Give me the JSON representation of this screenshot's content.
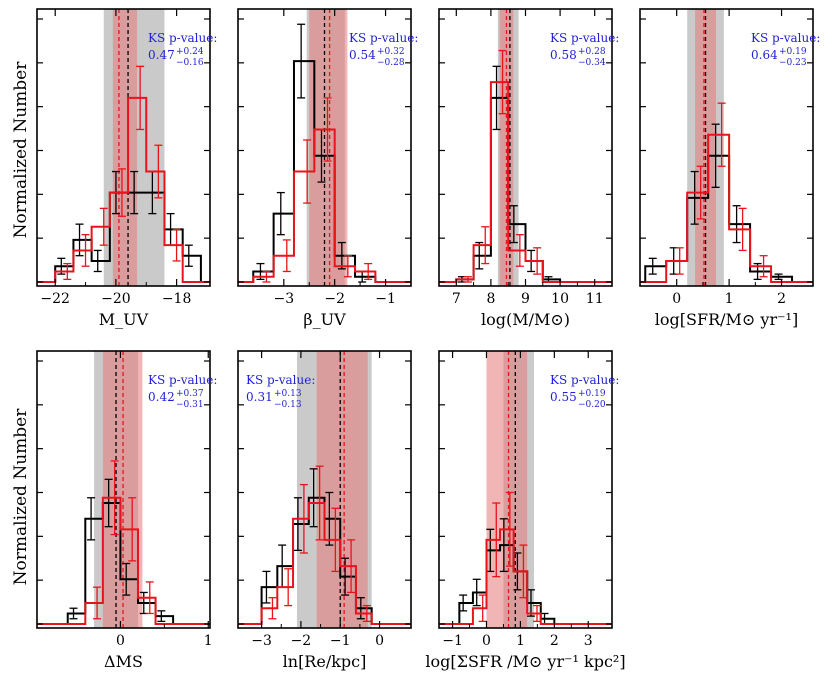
{
  "figure": {
    "ylabel": "Normalized Number",
    "ks_prefix": "KS p-value:"
  },
  "colors": {
    "sample_a": "#000000",
    "sample_b": "#e8141b",
    "band_a": "#bdbdbd",
    "band_b": "#e87979",
    "ks_text": "#1f1fd6"
  },
  "chart_data": [
    {
      "id": "muv",
      "type": "histogram",
      "xlabel": "M_UV",
      "xlim": [
        -22.6,
        -16.9
      ],
      "ylim": [
        0,
        1.0
      ],
      "xticks": [
        -22,
        -20,
        -18
      ],
      "xtick_labels": [
        "−22",
        "−20",
        "−18"
      ],
      "bin_edges": [
        -22,
        -21.4,
        -20.8,
        -20.2,
        -19.6,
        -19.0,
        -18.4,
        -17.8,
        -17.2
      ],
      "series": [
        {
          "name": "black",
          "values": [
            0.06,
            0.16,
            0.08,
            0.34,
            0.34,
            0.34,
            0.2,
            0.1
          ],
          "errors": [
            0.03,
            0.06,
            0.04,
            0.08,
            0.08,
            0.08,
            0.06,
            0.04
          ]
        },
        {
          "name": "red",
          "values": [
            0.04,
            0.12,
            0.21,
            0.34,
            0.7,
            0.42,
            0.14,
            0.0
          ],
          "errors": [
            0.03,
            0.06,
            0.07,
            0.09,
            0.12,
            0.1,
            0.06,
            0.0
          ]
        }
      ],
      "median_black": -19.6,
      "median_red": -19.9,
      "band_black": [
        -20.4,
        -18.4
      ],
      "band_red": [
        -20.1,
        -19.3
      ],
      "ks": {
        "value": "0.47",
        "plus": "+0.24",
        "minus": "−0.16",
        "pos": "right"
      }
    },
    {
      "id": "beta",
      "type": "histogram",
      "xlabel": "β_UV",
      "xlim": [
        -3.9,
        -0.5
      ],
      "ylim": [
        0,
        1.0
      ],
      "xticks": [
        -3,
        -2,
        -1
      ],
      "xtick_labels": [
        "−3",
        "−2",
        "−1"
      ],
      "bin_edges": [
        -3.6,
        -3.2,
        -2.8,
        -2.4,
        -2.0,
        -1.6,
        -1.2,
        -0.8
      ],
      "series": [
        {
          "name": "black",
          "values": [
            0.04,
            0.26,
            0.84,
            0.48,
            0.1,
            0.02,
            0.0
          ],
          "errors": [
            0.03,
            0.08,
            0.14,
            0.1,
            0.05,
            0.02,
            0.0
          ]
        },
        {
          "name": "red",
          "values": [
            0.02,
            0.1,
            0.42,
            0.58,
            0.06,
            0.04,
            0.0
          ],
          "errors": [
            0.02,
            0.06,
            0.12,
            0.12,
            0.04,
            0.03,
            0.0
          ]
        }
      ],
      "median_black": -2.2,
      "median_red": -2.1,
      "band_black": [
        -2.55,
        -1.8
      ],
      "band_red": [
        -2.5,
        -1.75
      ],
      "ks": {
        "value": "0.54",
        "plus": "+0.32",
        "minus": "−0.28",
        "pos": "right"
      }
    },
    {
      "id": "mass",
      "type": "histogram",
      "xlabel": "log(M/M⊙)",
      "xlim": [
        6.5,
        11.5
      ],
      "ylim": [
        0,
        1.0
      ],
      "xticks": [
        7,
        8,
        9,
        10,
        11
      ],
      "xtick_labels": [
        "7",
        "8",
        "9",
        "10",
        "11"
      ],
      "bin_edges": [
        7.0,
        7.5,
        8.0,
        8.5,
        9.0,
        9.5,
        10.0,
        10.5
      ],
      "series": [
        {
          "name": "black",
          "values": [
            0.01,
            0.1,
            0.7,
            0.22,
            0.08,
            0.01,
            0.0
          ],
          "errors": [
            0.01,
            0.05,
            0.12,
            0.07,
            0.04,
            0.01,
            0.0
          ]
        },
        {
          "name": "red",
          "values": [
            0.01,
            0.14,
            0.76,
            0.12,
            0.08,
            0.0,
            0.0
          ],
          "errors": [
            0.01,
            0.07,
            0.12,
            0.06,
            0.05,
            0.0,
            0.0
          ]
        }
      ],
      "median_black": 8.55,
      "median_red": 8.45,
      "band_black": [
        8.2,
        8.8
      ],
      "band_red": [
        8.25,
        8.65
      ],
      "ks": {
        "value": "0.58",
        "plus": "+0.28",
        "minus": "−0.34",
        "pos": "right"
      }
    },
    {
      "id": "sfr",
      "type": "histogram",
      "xlabel": "log[SFR/M⊙ yr⁻¹]",
      "xlim": [
        -0.7,
        2.6
      ],
      "ylim": [
        0,
        1.0
      ],
      "xticks": [
        0,
        1,
        2
      ],
      "xtick_labels": [
        "0",
        "1",
        "2"
      ],
      "bin_edges": [
        -0.6,
        -0.2,
        0.2,
        0.6,
        1.0,
        1.4,
        1.8,
        2.2
      ],
      "series": [
        {
          "name": "black",
          "values": [
            0.06,
            0.08,
            0.32,
            0.48,
            0.22,
            0.04,
            0.02
          ],
          "errors": [
            0.03,
            0.05,
            0.1,
            0.12,
            0.07,
            0.03,
            0.01
          ]
        },
        {
          "name": "red",
          "values": [
            0.0,
            0.08,
            0.34,
            0.56,
            0.2,
            0.06,
            0.0
          ],
          "errors": [
            0.0,
            0.05,
            0.1,
            0.12,
            0.08,
            0.04,
            0.0
          ]
        }
      ],
      "median_black": 0.55,
      "median_red": 0.52,
      "band_black": [
        0.2,
        0.9
      ],
      "band_red": [
        0.35,
        0.75
      ],
      "ks": {
        "value": "0.64",
        "plus": "+0.19",
        "minus": "−0.23",
        "pos": "right"
      }
    },
    {
      "id": "dms",
      "type": "histogram",
      "xlabel": "ΔMS",
      "xlim": [
        -0.95,
        1.02
      ],
      "ylim": [
        0,
        1.0
      ],
      "xticks": [
        0,
        1
      ],
      "xtick_labels": [
        "0",
        "1"
      ],
      "bin_edges": [
        -0.6,
        -0.4,
        -0.2,
        0.0,
        0.2,
        0.4,
        0.6,
        0.8
      ],
      "series": [
        {
          "name": "black",
          "values": [
            0.04,
            0.4,
            0.46,
            0.17,
            0.08,
            0.03,
            0.0
          ],
          "errors": [
            0.02,
            0.08,
            0.09,
            0.06,
            0.04,
            0.02,
            0.0
          ]
        },
        {
          "name": "red",
          "values": [
            0.0,
            0.08,
            0.48,
            0.36,
            0.1,
            0.0,
            0.0
          ],
          "errors": [
            0.0,
            0.06,
            0.14,
            0.12,
            0.06,
            0.0,
            0.0
          ]
        }
      ],
      "median_black": -0.05,
      "median_red": 0.03,
      "band_black": [
        -0.3,
        0.2
      ],
      "band_red": [
        -0.2,
        0.25
      ],
      "ks": {
        "value": "0.42",
        "plus": "+0.37",
        "minus": "−0.31",
        "pos": "right"
      }
    },
    {
      "id": "re",
      "type": "histogram",
      "xlabel": "ln[Re/kpc]",
      "xlim": [
        -3.6,
        0.8
      ],
      "ylim": [
        0,
        1.0
      ],
      "xticks": [
        -3,
        -2,
        -1,
        0
      ],
      "xtick_labels": [
        "−3",
        "−2",
        "−1",
        "0"
      ],
      "bin_edges": [
        -3.0,
        -2.6,
        -2.2,
        -1.8,
        -1.4,
        -1.0,
        -0.6,
        -0.2,
        0.2
      ],
      "series": [
        {
          "name": "black",
          "values": [
            0.14,
            0.22,
            0.38,
            0.48,
            0.4,
            0.18,
            0.06,
            0.0
          ],
          "errors": [
            0.06,
            0.08,
            0.1,
            0.11,
            0.1,
            0.07,
            0.04,
            0.0
          ]
        },
        {
          "name": "red",
          "values": [
            0.06,
            0.14,
            0.4,
            0.46,
            0.32,
            0.22,
            0.04,
            0.0
          ],
          "errors": [
            0.04,
            0.07,
            0.13,
            0.14,
            0.12,
            0.1,
            0.03,
            0.0
          ]
        }
      ],
      "median_black": -1.0,
      "median_red": -0.9,
      "band_black": [
        -2.1,
        -0.2
      ],
      "band_red": [
        -1.6,
        -0.3
      ],
      "ks": {
        "value": "0.31",
        "plus": "+0.13",
        "minus": "−0.13",
        "pos": "left"
      }
    },
    {
      "id": "ssfr",
      "type": "histogram",
      "xlabel": "log[ΣSFR /M⊙ yr⁻¹ kpc²]",
      "xlim": [
        -1.4,
        3.7
      ],
      "ylim": [
        0,
        1.0
      ],
      "xticks": [
        -1,
        0,
        1,
        2,
        3
      ],
      "xtick_labels": [
        "−1",
        "0",
        "1",
        "2",
        "3"
      ],
      "bin_edges": [
        -0.8,
        -0.4,
        0.0,
        0.4,
        0.8,
        1.2,
        1.6,
        2.0,
        2.4,
        2.8
      ],
      "series": [
        {
          "name": "black",
          "values": [
            0.08,
            0.12,
            0.28,
            0.3,
            0.2,
            0.08,
            0.02,
            0.0,
            0.0
          ],
          "errors": [
            0.03,
            0.05,
            0.08,
            0.1,
            0.07,
            0.05,
            0.02,
            0.0,
            0.0
          ]
        },
        {
          "name": "red",
          "values": [
            0.0,
            0.06,
            0.32,
            0.36,
            0.2,
            0.04,
            0.0,
            0.0,
            0.0
          ],
          "errors": [
            0.0,
            0.05,
            0.14,
            0.14,
            0.1,
            0.03,
            0.0,
            0.0,
            0.0
          ]
        }
      ],
      "median_black": 0.85,
      "median_red": 0.65,
      "band_black": [
        0.5,
        1.4
      ],
      "band_red": [
        0.0,
        1.2
      ],
      "ks": {
        "value": "0.55",
        "plus": "+0.19",
        "minus": "−0.20",
        "pos": "right"
      }
    }
  ]
}
